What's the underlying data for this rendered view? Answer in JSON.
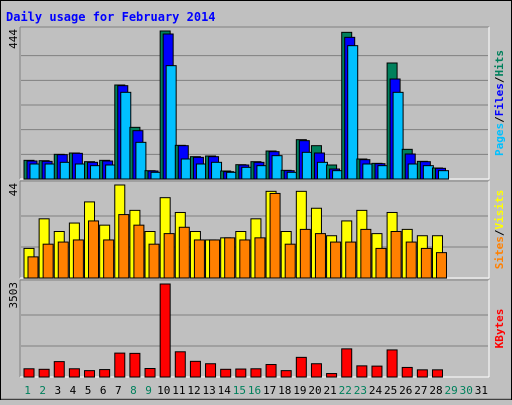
{
  "chart_data": {
    "type": "bar",
    "title": "Daily usage for February 2014",
    "categories": [
      "1",
      "2",
      "3",
      "4",
      "5",
      "6",
      "7",
      "8",
      "9",
      "10",
      "11",
      "12",
      "13",
      "14",
      "15",
      "16",
      "17",
      "18",
      "19",
      "20",
      "21",
      "22",
      "23",
      "24",
      "25",
      "26",
      "27",
      "28",
      "29",
      "30",
      "31"
    ],
    "weekend_days": [
      "1",
      "2",
      "8",
      "9",
      "15",
      "16",
      "22",
      "23",
      "29",
      "30"
    ],
    "colors": {
      "hits": "#00805c",
      "files": "#0000ff",
      "pages": "#00c0ff",
      "visits": "#ffff00",
      "sites": "#ff8000",
      "kbytes": "#ff0000",
      "title": "#0000ff",
      "weekend_label": "#00805c",
      "weekday_label": "#000000"
    },
    "panels": [
      {
        "id": "hits-files-pages",
        "y_max_label": "444",
        "ylim": [
          0,
          444
        ],
        "side_labels": [
          "Pages",
          "/",
          "Files",
          "/",
          "Hits"
        ],
        "series": [
          {
            "name": "Hits",
            "color": "#00805c",
            "values": [
              56,
              55,
              74,
              78,
              52,
              56,
              282,
              155,
              25,
              444,
              101,
              67,
              69,
              24,
              43,
              52,
              84,
              26,
              118,
              100,
              42,
              440,
              60,
              47,
              348,
              89,
              53,
              33,
              0,
              0,
              0
            ]
          },
          {
            "name": "Files",
            "color": "#0000ff",
            "values": [
              54,
              53,
              73,
              77,
              50,
              54,
              280,
              145,
              24,
              435,
              100,
              65,
              67,
              22,
              42,
              50,
              82,
              25,
              115,
              78,
              30,
              425,
              58,
              46,
              300,
              75,
              52,
              32,
              0,
              0,
              0
            ]
          },
          {
            "name": "Pages",
            "color": "#00c0ff",
            "values": [
              45,
              45,
              50,
              45,
              40,
              42,
              260,
              110,
              20,
              340,
              60,
              45,
              50,
              20,
              35,
              40,
              70,
              20,
              80,
              50,
              25,
              400,
              45,
              40,
              260,
              45,
              40,
              25,
              0,
              0,
              0
            ]
          }
        ]
      },
      {
        "id": "visits-sites",
        "y_max_label": "44",
        "ylim": [
          0,
          44
        ],
        "side_labels": [
          "Sites",
          "/",
          "Visits"
        ],
        "series": [
          {
            "name": "Visits",
            "color": "#ffff00",
            "values": [
              14,
              28,
              22,
              26,
              36,
              25,
              44,
              32,
              22,
              38,
              31,
              22,
              18,
              19,
              22,
              28,
              41,
              22,
              41,
              33,
              20,
              27,
              32,
              21,
              31,
              23,
              20,
              20,
              0,
              0,
              0
            ]
          },
          {
            "name": "Sites",
            "color": "#ff8000",
            "values": [
              10,
              16,
              17,
              18,
              27,
              18,
              30,
              25,
              16,
              21,
              24,
              18,
              18,
              19,
              18,
              19,
              40,
              16,
              23,
              21,
              17,
              17,
              23,
              14,
              22,
              17,
              14,
              12,
              0,
              0,
              0
            ]
          }
        ]
      },
      {
        "id": "kbytes",
        "y_max_label": "3503",
        "ylim": [
          0,
          3503
        ],
        "side_labels": [
          "KBytes"
        ],
        "series": [
          {
            "name": "KBytes",
            "color": "#ff0000",
            "values": [
              310,
              290,
              580,
              310,
              240,
              280,
              900,
              890,
              320,
              3503,
              950,
              590,
              500,
              290,
              300,
              310,
              470,
              240,
              740,
              500,
              130,
              1060,
              420,
              410,
              1020,
              360,
              270,
              270,
              0,
              0,
              0
            ]
          }
        ]
      }
    ]
  }
}
